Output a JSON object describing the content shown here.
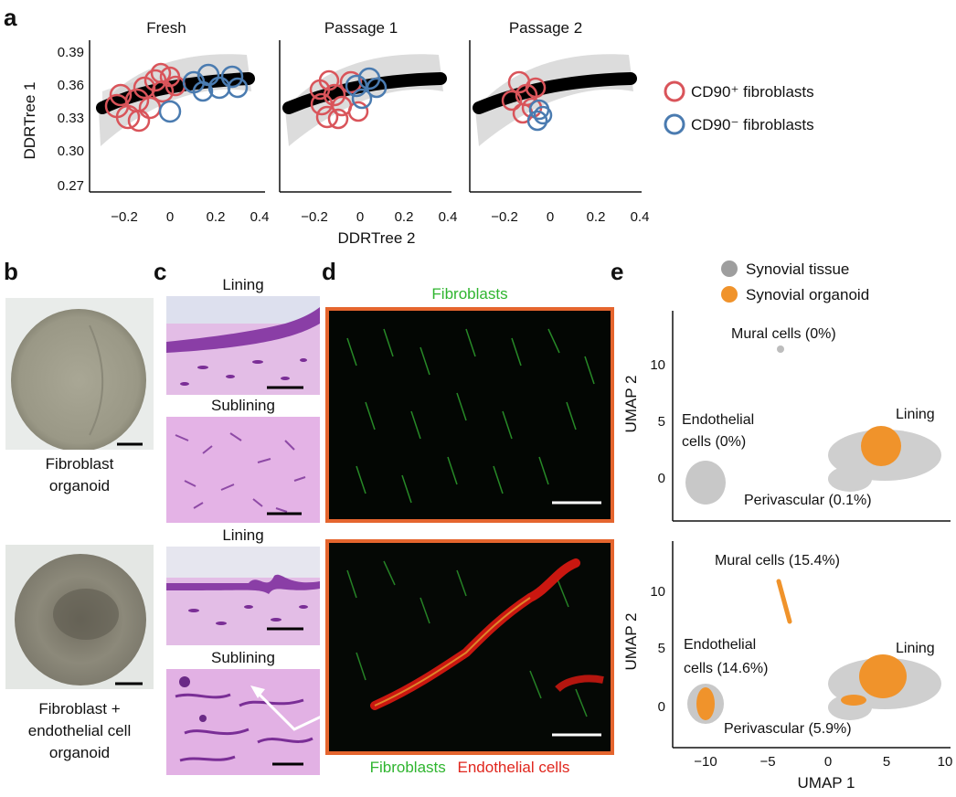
{
  "panel_a": {
    "label": "a",
    "titles": [
      "Fresh",
      "Passage 1",
      "Passage 2"
    ],
    "ylabel": "DDRTree 1",
    "xlabel": "DDRTree 2",
    "yticks": [
      "0.39",
      "0.36",
      "0.33",
      "0.30",
      "0.27"
    ],
    "xticks": [
      "−0.2",
      "0",
      "0.2",
      "0.4"
    ],
    "legend": [
      {
        "label": "CD90⁺ fibroblasts",
        "color": "#d9545a"
      },
      {
        "label": "CD90⁻ fibroblasts",
        "color": "#4a7bb0"
      }
    ]
  },
  "panel_b": {
    "label": "b",
    "top_caption_1": "Fibroblast",
    "top_caption_2": "organoid",
    "bottom_caption_1": "Fibroblast +",
    "bottom_caption_2": "endothelial cell",
    "bottom_caption_3": "organoid"
  },
  "panel_c": {
    "label": "c",
    "labels": [
      "Lining",
      "Sublining",
      "Lining",
      "Sublining"
    ]
  },
  "panel_d": {
    "label": "d",
    "top_label": "Fibroblasts",
    "bottom_label_1": "Fibroblasts",
    "bottom_label_2": "Endothelial cells"
  },
  "panel_e": {
    "label": "e",
    "legend": [
      {
        "label": "Synovial tissue",
        "color": "#9e9e9e"
      },
      {
        "label": "Synovial organoid",
        "color": "#f0932b"
      }
    ],
    "ylabel": "UMAP 2",
    "xlabel": "UMAP 1",
    "yticks": [
      "10",
      "5",
      "0"
    ],
    "xticks": [
      "−10",
      "−5",
      "0",
      "5",
      "10"
    ],
    "top": {
      "mural": "Mural cells (0%)",
      "endo_1": "Endothelial",
      "endo_2": "cells (0%)",
      "lining": "Lining",
      "perivascular": "Perivascular (0.1%)"
    },
    "bottom": {
      "mural": "Mural cells (15.4%)",
      "endo_1": "Endothelial",
      "endo_2": "cells (14.6%)",
      "lining": "Lining",
      "perivascular": "Perivascular (5.9%)"
    }
  }
}
